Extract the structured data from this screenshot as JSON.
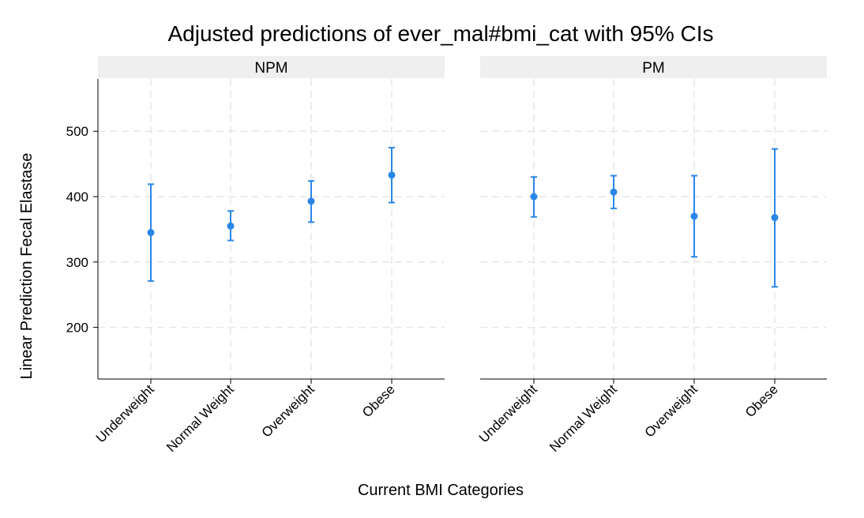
{
  "chart_data": {
    "type": "scatter",
    "title": "Adjusted predictions of ever_mal#bmi_cat with 95% CIs",
    "xlabel": "Current BMI Categories",
    "ylabel": "Linear Prediction Fecal Elastase",
    "ylim": [
      121,
      580
    ],
    "yticks": [
      200,
      300,
      400,
      500
    ],
    "grid": true,
    "marker_color": "#2a86e8",
    "categories": [
      "Underweight",
      "Normal Weight",
      "Overweight",
      "Obese"
    ],
    "panels": [
      {
        "name": "NPM",
        "values": [
          345,
          355,
          393,
          433
        ],
        "ci_lower": [
          271,
          333,
          361,
          391
        ],
        "ci_upper": [
          419,
          378,
          424,
          475
        ]
      },
      {
        "name": "PM",
        "values": [
          400,
          407,
          370,
          368
        ],
        "ci_lower": [
          369,
          382,
          308,
          262
        ],
        "ci_upper": [
          430,
          432,
          432,
          473
        ]
      }
    ]
  }
}
